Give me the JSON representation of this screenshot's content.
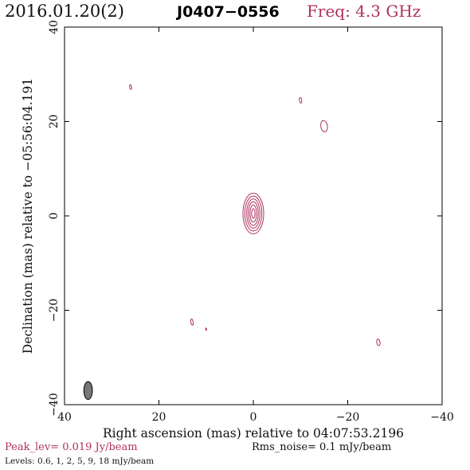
{
  "header": {
    "date": "2016.01.20(2)",
    "source": "J0407−0556",
    "freq": "Freq: 4.3 GHz"
  },
  "chart_data": {
    "type": "contour",
    "xlabel": "Right ascension (mas) relative to 04:07:53.2196",
    "ylabel": "Declination (mas) relative to −05:56:04.191",
    "xlim": [
      40,
      -40
    ],
    "ylim": [
      -40,
      40
    ],
    "x_ticks": [
      40,
      20,
      0,
      -20,
      -40
    ],
    "y_ticks": [
      40,
      20,
      0,
      -20,
      -40
    ],
    "x_tick_labels": [
      "40",
      "20",
      "0",
      "−20",
      "−40"
    ],
    "y_tick_labels": [
      "40",
      "20",
      "0",
      "−20",
      "−40"
    ],
    "contour_color": "#b03060",
    "core": {
      "center": [
        0,
        0.5
      ],
      "rings": [
        {
          "rx": 2.2,
          "ry": 4.3
        },
        {
          "rx": 1.8,
          "ry": 3.7
        },
        {
          "rx": 1.4,
          "ry": 3.1
        },
        {
          "rx": 1.05,
          "ry": 2.5
        },
        {
          "rx": 0.7,
          "ry": 1.8
        },
        {
          "rx": 0.35,
          "ry": 1.0
        }
      ]
    },
    "blobs": [
      {
        "x": 26,
        "y": 27.3,
        "rx": 0.2,
        "ry": 0.5
      },
      {
        "x": -10,
        "y": 24.5,
        "rx": 0.25,
        "ry": 0.6
      },
      {
        "x": -15,
        "y": 19.0,
        "rx": 0.7,
        "ry": 1.2
      },
      {
        "x": 13,
        "y": -22.5,
        "rx": 0.25,
        "ry": 0.65
      },
      {
        "x": 10,
        "y": -24.0,
        "rx": 0.1,
        "ry": 0.25
      },
      {
        "x": -26.5,
        "y": -26.8,
        "rx": 0.35,
        "ry": 0.7
      }
    ],
    "beam": {
      "x": 35,
      "y": -37,
      "rx": 0.9,
      "ry": 1.9,
      "fill": "#777777"
    },
    "peak_level": "Peak_lev=  0.019 Jy/beam",
    "rms_noise": "Rms_noise=   0.1 mJy/beam",
    "levels": "Levels: 0.6,    1,    2,    5,    9,   18 mJy/beam"
  }
}
